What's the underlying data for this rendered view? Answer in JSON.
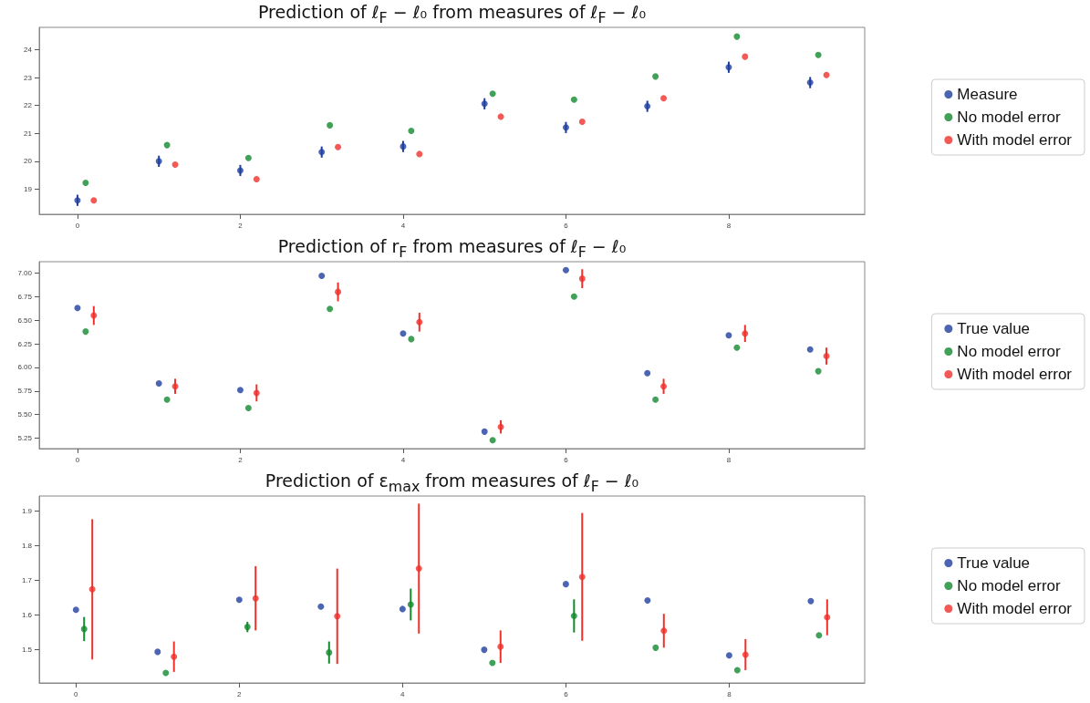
{
  "chart_data": [
    {
      "type": "scatter",
      "title": "Prediction of ℓ$_{F}$ − ℓ₀ from measures of ℓ$_{F}$ − ℓ₀",
      "xlim": [
        -0.47,
        9.67
      ],
      "xticks": [
        0,
        2,
        4,
        6,
        8
      ],
      "ylim": [
        18.1,
        24.8
      ],
      "yticks": [
        19,
        20,
        21,
        22,
        23,
        24
      ],
      "grid": false,
      "legend": "right",
      "marker": "circle",
      "series": [
        {
          "name": "Measure",
          "color": "#1f3fa0",
          "x": [
            0,
            1,
            2,
            3,
            4,
            5,
            6,
            7,
            8,
            9
          ],
          "values": [
            18.6,
            20.0,
            19.67,
            20.33,
            20.53,
            22.06,
            21.21,
            21.97,
            23.37,
            22.82
          ],
          "errors": [
            0.2,
            0.2,
            0.2,
            0.2,
            0.2,
            0.2,
            0.2,
            0.2,
            0.2,
            0.2
          ]
        },
        {
          "name": "No model error",
          "color": "#138a2e",
          "x": [
            0.1,
            1.1,
            2.1,
            3.1,
            4.1,
            5.1,
            6.1,
            7.1,
            8.1,
            9.1
          ],
          "values": [
            19.23,
            20.58,
            20.12,
            21.29,
            21.09,
            22.42,
            22.21,
            23.04,
            24.47,
            23.81
          ]
        },
        {
          "name": "With model error",
          "color": "#f0302a",
          "x": [
            0.2,
            1.2,
            2.2,
            3.2,
            4.2,
            5.2,
            6.2,
            7.2,
            8.2,
            9.2
          ],
          "values": [
            18.6,
            19.88,
            19.36,
            20.51,
            20.26,
            21.6,
            21.42,
            22.26,
            23.75,
            23.09
          ]
        }
      ]
    },
    {
      "type": "scatter",
      "title": "Prediction of r$_{F}$ from measures of ℓ$_{F}$ − ℓ₀",
      "xlim": [
        -0.47,
        9.67
      ],
      "xticks": [
        0,
        2,
        4,
        6,
        8
      ],
      "ylim": [
        5.14,
        7.12
      ],
      "yticks": [
        {
          "value": 5.25,
          "label": "5.25"
        },
        {
          "value": 5.5,
          "label": "5.50"
        },
        {
          "value": 5.75,
          "label": "5.75"
        },
        {
          "value": 6,
          "label": "6.00"
        },
        {
          "value": 6.25,
          "label": "6.25"
        },
        {
          "value": 6.5,
          "label": "6.50"
        },
        {
          "value": 6.75,
          "label": "6.75"
        },
        {
          "value": 7,
          "label": "7.00"
        }
      ],
      "grid": false,
      "legend": "right",
      "marker": "circle",
      "series": [
        {
          "name": "True value",
          "color": "#1f3fa0",
          "x": [
            0,
            1,
            2,
            3,
            4,
            5,
            6,
            7,
            8,
            9
          ],
          "values": [
            6.63,
            5.83,
            5.76,
            6.97,
            6.36,
            5.32,
            7.03,
            5.94,
            6.34,
            6.19
          ]
        },
        {
          "name": "No model error",
          "color": "#138a2e",
          "x": [
            0.1,
            1.1,
            2.1,
            3.1,
            4.1,
            5.1,
            6.1,
            7.1,
            8.1,
            9.1
          ],
          "values": [
            6.38,
            5.66,
            5.57,
            6.62,
            6.3,
            5.23,
            6.75,
            5.66,
            6.21,
            5.96
          ]
        },
        {
          "name": "With model error",
          "color": "#f0302a",
          "x": [
            0.2,
            1.2,
            2.2,
            3.2,
            4.2,
            5.2,
            6.2,
            7.2,
            8.2,
            9.2
          ],
          "values": [
            6.55,
            5.8,
            5.73,
            6.8,
            6.48,
            5.37,
            6.94,
            5.8,
            6.36,
            6.12
          ],
          "errors": [
            0.1,
            0.08,
            0.09,
            0.1,
            0.1,
            0.07,
            0.1,
            0.08,
            0.09,
            0.09
          ]
        }
      ]
    },
    {
      "type": "scatter",
      "title": "Prediction of ε$_{max}$ from measures of ℓ$_{F}$ − ℓ₀",
      "xlim": [
        -0.45,
        9.66
      ],
      "xticks": [
        0,
        2,
        4,
        6,
        8
      ],
      "ylim": [
        1.403,
        1.944
      ],
      "yticks": [
        1.5,
        1.6,
        1.7,
        1.8,
        1.9
      ],
      "grid": false,
      "legend": "right",
      "marker": "circle",
      "series": [
        {
          "name": "True value",
          "color": "#1f3fa0",
          "x": [
            0,
            1,
            2,
            3,
            4,
            5,
            6,
            7,
            8,
            9
          ],
          "values": [
            1.615,
            1.493,
            1.644,
            1.624,
            1.617,
            1.499,
            1.689,
            1.642,
            1.483,
            1.64
          ]
        },
        {
          "name": "No model error",
          "color": "#138a2e",
          "x": [
            0.1,
            1.1,
            2.1,
            3.1,
            4.1,
            5.1,
            6.1,
            7.1,
            8.1,
            9.1
          ],
          "values": [
            1.559,
            1.432,
            1.565,
            1.491,
            1.63,
            1.461,
            1.597,
            1.505,
            1.44,
            1.541
          ],
          "errors": [
            0.035,
            null,
            0.015,
            0.032,
            0.046,
            null,
            0.048,
            null,
            null,
            null
          ]
        },
        {
          "name": "With model error",
          "color": "#f0302a",
          "x": [
            0.2,
            1.2,
            2.2,
            3.2,
            4.2,
            5.2,
            6.2,
            7.2,
            8.2,
            9.2
          ],
          "values": [
            1.674,
            1.479,
            1.648,
            1.596,
            1.734,
            1.508,
            1.71,
            1.554,
            1.485,
            1.593
          ],
          "errors": [
            0.203,
            0.044,
            0.093,
            0.138,
            0.188,
            0.047,
            0.185,
            0.049,
            0.045,
            0.052
          ]
        }
      ]
    }
  ]
}
